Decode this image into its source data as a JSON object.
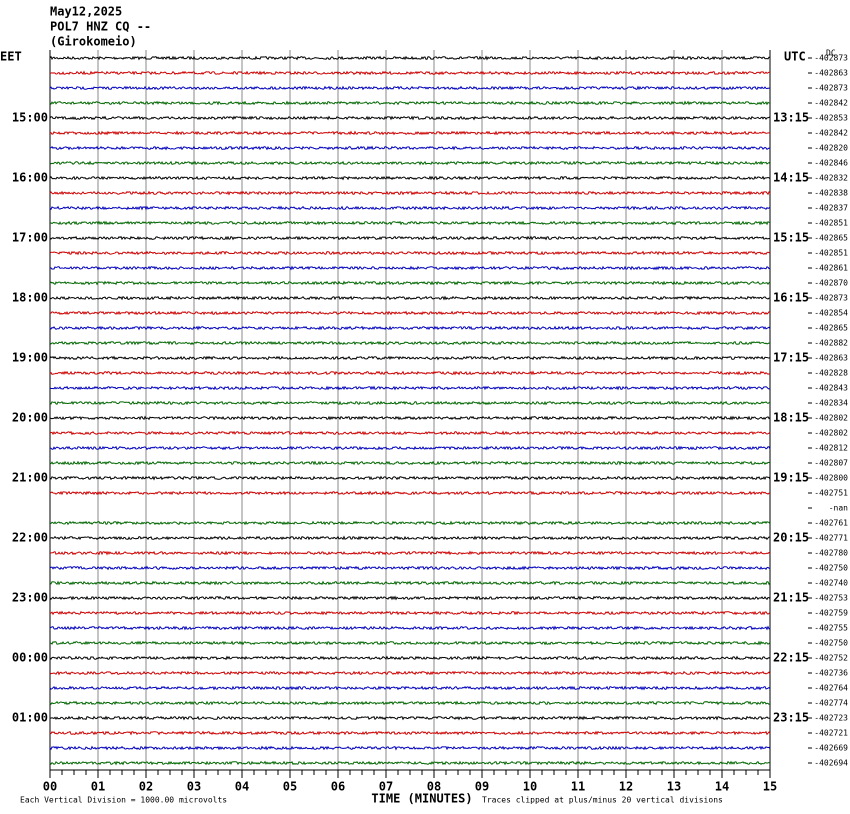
{
  "header": {
    "date": "May12,2025",
    "station": "POL7 HNZ CQ --",
    "site": "(Girokomeio)"
  },
  "left_axis": {
    "title": "EET",
    "labels": [
      "15:00",
      "16:00",
      "17:00",
      "18:00",
      "19:00",
      "20:00",
      "21:00",
      "22:00",
      "23:00",
      "00:00",
      "01:00"
    ]
  },
  "right_axis": {
    "title": "UTC",
    "labels": [
      "13:15",
      "14:15",
      "15:15",
      "16:15",
      "17:15",
      "18:15",
      "19:15",
      "20:15",
      "21:15",
      "22:15",
      "23:15"
    ]
  },
  "dc_title": "DC",
  "dc_offsets": [
    "-402873",
    "-402863",
    "-402873",
    "-402842",
    "-402853",
    "-402842",
    "-402820",
    "-402846",
    "-402832",
    "-402838",
    "-402837",
    "-402851",
    "-402865",
    "-402851",
    "-402861",
    "-402870",
    "-402873",
    "-402854",
    "-402865",
    "-402882",
    "-402863",
    "-402828",
    "-402843",
    "-402834",
    "-402802",
    "-402802",
    "-402812",
    "-402807",
    "-402800",
    "-402751",
    "-nan",
    "-402761",
    "-402771",
    "-402780",
    "-402750",
    "-402740",
    "-402753",
    "-402759",
    "-402755",
    "-402750",
    "-402752",
    "-402736",
    "-402764",
    "-402774",
    "-402723",
    "-402721",
    "-402669",
    "-402694"
  ],
  "gap_rows": [
    30
  ],
  "trace_colors": [
    "#000000",
    "#cc0000",
    "#0000bb",
    "#006600"
  ],
  "x_ticks": [
    "00",
    "01",
    "02",
    "03",
    "04",
    "05",
    "06",
    "07",
    "08",
    "09",
    "10",
    "11",
    "12",
    "13",
    "14",
    "15"
  ],
  "footer": {
    "scale": "Each Vertical Division = 1000.00 microvolts",
    "x_title": "TIME (MINUTES)",
    "clip_note": "Traces clipped at plus/minus 20 vertical divisions"
  }
}
